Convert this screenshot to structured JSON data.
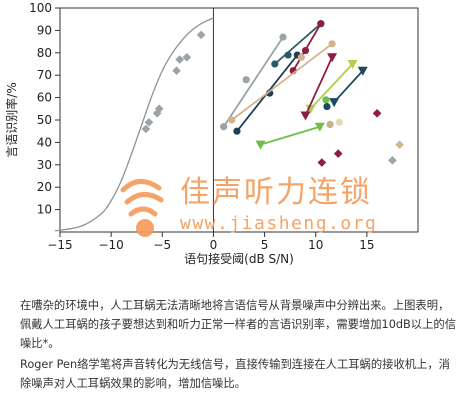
{
  "chart_data": {
    "type": "scatter",
    "xlabel": "语句接受阈(dB S/N)",
    "ylabel": "言语识别率/%",
    "xlim": [
      -15,
      20
    ],
    "ylim": [
      0,
      100
    ],
    "xticks": [
      -15,
      -10,
      -5,
      0,
      5,
      10,
      15
    ],
    "xtick_labels": [
      "−15",
      "−10",
      "−5",
      "0",
      "5",
      "10",
      "15"
    ],
    "yticks": [
      10,
      20,
      30,
      40,
      50,
      60,
      70,
      80,
      90,
      100
    ],
    "grid": false,
    "normal_curve": [
      [
        -15.5,
        0.5
      ],
      [
        -13,
        2.5
      ],
      [
        -11,
        8
      ],
      [
        -10,
        14
      ],
      [
        -9,
        23
      ],
      [
        -8,
        35
      ],
      [
        -7,
        48
      ],
      [
        -6,
        61
      ],
      [
        -5,
        72
      ],
      [
        -4,
        80
      ],
      [
        -3,
        86
      ],
      [
        -2,
        90.5
      ],
      [
        -1,
        93.5
      ],
      [
        0,
        95.5
      ]
    ],
    "normal_points": [
      {
        "x": -6.6,
        "y": 46
      },
      {
        "x": -6.3,
        "y": 49
      },
      {
        "x": -5.5,
        "y": 53
      },
      {
        "x": -5.3,
        "y": 55
      },
      {
        "x": -3.6,
        "y": 72
      },
      {
        "x": -3.3,
        "y": 77
      },
      {
        "x": -2.6,
        "y": 78
      },
      {
        "x": -1.2,
        "y": 88
      }
    ],
    "series": [
      {
        "color": "#9aa3a7",
        "marker": "circle",
        "points": [
          [
            1.0,
            47
          ],
          [
            3.2,
            68
          ],
          [
            6.8,
            87
          ]
        ]
      },
      {
        "color": "#1e3f55",
        "marker": "circle",
        "points": [
          [
            2.3,
            45
          ],
          [
            5.5,
            62
          ],
          [
            8.2,
            79
          ]
        ]
      },
      {
        "color": "#2a5a6a",
        "marker": "circle",
        "points": [
          [
            6.0,
            75
          ],
          [
            7.3,
            79
          ],
          [
            10.5,
            93
          ]
        ]
      },
      {
        "color": "#8e1f3e",
        "marker": "circle",
        "points": [
          [
            7.8,
            72
          ],
          [
            9.0,
            81
          ],
          [
            10.5,
            93
          ]
        ]
      },
      {
        "color": "#d3b48c",
        "marker": "circle",
        "points": [
          [
            1.8,
            50
          ],
          [
            8.6,
            78
          ],
          [
            11.6,
            84
          ]
        ]
      },
      {
        "color": "#b3cf4a",
        "marker": "triangle",
        "points": [
          [
            9.5,
            55
          ],
          [
            13.6,
            75
          ]
        ]
      },
      {
        "color": "#1d4a5c",
        "marker": "triangle",
        "points": [
          [
            11.8,
            58
          ],
          [
            14.6,
            72
          ]
        ]
      },
      {
        "color": "#8e1f3e",
        "marker": "triangle",
        "points": [
          [
            9.0,
            52
          ],
          [
            11.6,
            78
          ]
        ]
      },
      {
        "color": "#6fbd4a",
        "marker": "triangle",
        "points": [
          [
            4.6,
            39
          ],
          [
            10.4,
            47
          ]
        ]
      }
    ],
    "isolated_points": [
      {
        "x": 11.0,
        "y": 59,
        "color": "#6fbd4a",
        "marker": "circle"
      },
      {
        "x": 11.4,
        "y": 48,
        "color": "#c7b08c",
        "marker": "circle"
      },
      {
        "x": 12.3,
        "y": 49,
        "color": "#e5d8b8",
        "marker": "circle"
      },
      {
        "x": 11.1,
        "y": 56,
        "color": "#1d4a5c",
        "marker": "circle"
      },
      {
        "x": 10.6,
        "y": 31,
        "color": "#8e1f3e",
        "marker": "diamond"
      },
      {
        "x": 12.2,
        "y": 35,
        "color": "#8e1f3e",
        "marker": "diamond"
      },
      {
        "x": 16.0,
        "y": 53,
        "color": "#8e1f3e",
        "marker": "diamond"
      },
      {
        "x": 18.2,
        "y": 39,
        "color": "#d3b48c",
        "marker": "diamond"
      },
      {
        "x": 17.5,
        "y": 32,
        "color": "#9aa3a7",
        "marker": "diamond"
      }
    ]
  },
  "watermark": {
    "name": "佳声听力连锁",
    "url": "www.jiasheng.org"
  },
  "caption": {
    "paragraph1": "在嘈杂的环境中，人工耳蜗无法清晰地将言语信号从背景噪声中分辨出来。上图表明，佩戴人工耳蜗的孩子要想达到和听力正常一样者的言语识别率，需要增加10dB以上的信噪比*。",
    "paragraph2": "Roger Pen络学笔将声音转化为无线信号，直接传输到连接在人工耳蜗的接收机上，消除噪声对人工耳蜗效果的影响，增加信噪比。"
  }
}
